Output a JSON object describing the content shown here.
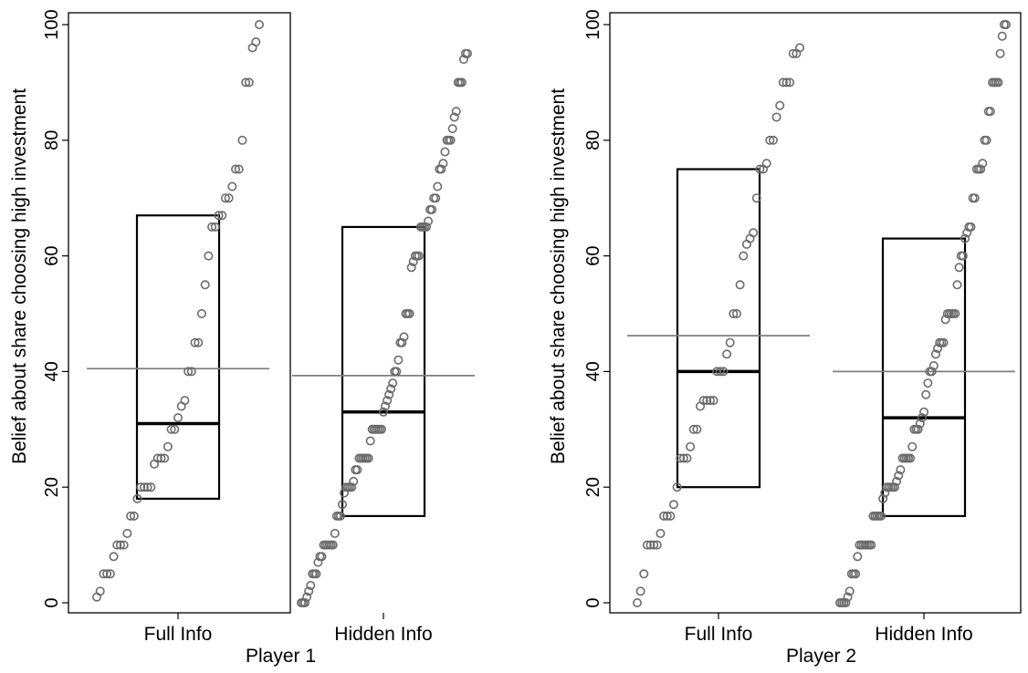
{
  "chart_data": [
    {
      "type": "scatter",
      "panel": "Player 1",
      "xlabel": "Player 1",
      "ylabel": "Belief about share choosing high investment",
      "ylim": [
        0,
        100
      ],
      "yticks": [
        0,
        20,
        40,
        60,
        80,
        100
      ],
      "categories": [
        "Full Info",
        "Hidden Info"
      ],
      "grid": false,
      "groups": [
        {
          "name": "Full Info",
          "box": {
            "q1": 18,
            "median": 31,
            "q3": 67
          },
          "mean": 40.5,
          "values": [
            1,
            2,
            5,
            5,
            5,
            8,
            10,
            10,
            10,
            12,
            15,
            15,
            18,
            20,
            20,
            20,
            20,
            24,
            25,
            25,
            25,
            27,
            30,
            30,
            32,
            34,
            35,
            40,
            40,
            45,
            45,
            50,
            55,
            60,
            65,
            65,
            67,
            67,
            70,
            70,
            72,
            75,
            75,
            80,
            90,
            90,
            96,
            97,
            100
          ]
        },
        {
          "name": "Hidden Info",
          "box": {
            "q1": 15,
            "median": 33,
            "q3": 65
          },
          "mean": 39.3,
          "values": [
            0,
            0,
            0,
            1,
            2,
            3,
            5,
            5,
            5,
            7,
            8,
            8,
            10,
            10,
            10,
            10,
            10,
            10,
            12,
            15,
            15,
            15,
            17,
            19,
            20,
            20,
            20,
            20,
            21,
            23,
            23,
            25,
            25,
            25,
            25,
            25,
            25,
            28,
            30,
            30,
            30,
            30,
            30,
            30,
            33,
            34,
            35,
            36,
            37,
            38,
            40,
            40,
            42,
            45,
            45,
            46,
            50,
            50,
            50,
            58,
            59,
            60,
            60,
            60,
            65,
            65,
            65,
            65,
            66,
            68,
            68,
            70,
            70,
            72,
            75,
            75,
            76,
            78,
            80,
            80,
            80,
            82,
            84,
            85,
            90,
            90,
            90,
            94,
            95,
            95
          ]
        }
      ]
    },
    {
      "type": "scatter",
      "panel": "Player 2",
      "xlabel": "Player 2",
      "ylabel": "Belief about share choosing high investment",
      "ylim": [
        0,
        100
      ],
      "yticks": [
        0,
        20,
        40,
        60,
        80,
        100
      ],
      "categories": [
        "Full Info",
        "Hidden Info"
      ],
      "grid": false,
      "groups": [
        {
          "name": "Full Info",
          "box": {
            "q1": 20,
            "median": 40,
            "q3": 75
          },
          "mean": 46.2,
          "values": [
            0,
            2,
            5,
            10,
            10,
            10,
            10,
            12,
            15,
            15,
            15,
            17,
            20,
            25,
            25,
            25,
            27,
            30,
            30,
            34,
            35,
            35,
            35,
            35,
            40,
            40,
            40,
            43,
            45,
            50,
            50,
            55,
            60,
            62,
            63,
            64,
            70,
            75,
            75,
            76,
            80,
            80,
            84,
            86,
            90,
            90,
            90,
            95,
            95,
            96
          ]
        },
        {
          "name": "Hidden Info",
          "box": {
            "q1": 15,
            "median": 32,
            "q3": 63
          },
          "mean": 40,
          "values": [
            0,
            0,
            0,
            0,
            1,
            2,
            5,
            5,
            5,
            8,
            10,
            10,
            10,
            10,
            10,
            10,
            10,
            15,
            15,
            15,
            15,
            15,
            18,
            19,
            20,
            20,
            20,
            20,
            20,
            21,
            22,
            23,
            25,
            25,
            25,
            25,
            25,
            27,
            30,
            30,
            30,
            31,
            32,
            33,
            36,
            38,
            40,
            40,
            41,
            43,
            44,
            45,
            45,
            45,
            49,
            50,
            50,
            50,
            50,
            50,
            55,
            58,
            60,
            60,
            63,
            64,
            65,
            65,
            70,
            70,
            75,
            75,
            75,
            76,
            80,
            80,
            85,
            85,
            90,
            90,
            90,
            90,
            95,
            98,
            100,
            100
          ]
        }
      ]
    }
  ],
  "colors": {
    "points": "#6b6b6b",
    "box": "#000000",
    "mean_line": "#7f7f7f",
    "frame": "#000000"
  }
}
